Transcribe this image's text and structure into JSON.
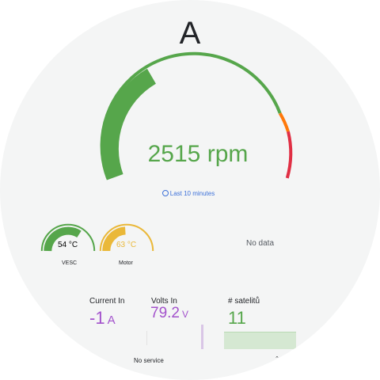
{
  "colors": {
    "green": "#56a64b",
    "orange": "#ff780a",
    "red": "#e02f44",
    "yellow": "#eab839",
    "purple": "#a352cc",
    "link": "#3d71d9",
    "background": "#f4f5f5"
  },
  "main_gauge": {
    "title": "A",
    "value_text": "2515 rpm",
    "value": 2515,
    "unit": "rpm",
    "time_range": "Last 10 minutes",
    "time_icon": "clock-icon"
  },
  "temps": [
    {
      "name": "VESC",
      "value_text": "54 °C",
      "value": 54,
      "fill": 0.55,
      "color": "#56a64b"
    },
    {
      "name": "Motor",
      "value_text": "63 °C",
      "value": 63,
      "fill": 0.45,
      "color": "#eab839"
    }
  ],
  "no_data_text": "No data",
  "stats": {
    "current": {
      "title": "Current In",
      "value": "-1",
      "unit": "A",
      "color": "#a352cc"
    },
    "volts": {
      "title": "Volts In",
      "value": "79.2",
      "unit": "V",
      "color": "#a352cc"
    },
    "satellites": {
      "title": "# satelitů",
      "value": "11",
      "color": "#56a64b"
    }
  },
  "no_service_text": "No service"
}
